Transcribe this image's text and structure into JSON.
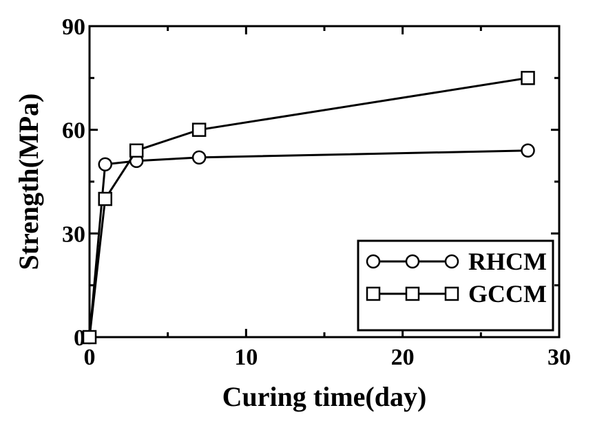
{
  "chart_data": {
    "type": "line",
    "xlabel": "Curing time(day)",
    "ylabel": "Strength(MPa)",
    "xlim": [
      0,
      30
    ],
    "ylim": [
      0,
      90
    ],
    "x_ticks": [
      "0",
      "10",
      "20",
      "30"
    ],
    "y_ticks": [
      "0",
      "30",
      "60",
      "90"
    ],
    "grid": false,
    "legend_position": "bottom-right",
    "series": [
      {
        "name": "RHCM",
        "marker": "circle",
        "color": "#000000",
        "x": [
          0,
          1,
          3,
          7,
          28
        ],
        "y": [
          0,
          50,
          51,
          52,
          54
        ]
      },
      {
        "name": "GCCM",
        "marker": "square",
        "color": "#000000",
        "x": [
          0,
          1,
          3,
          7,
          28
        ],
        "y": [
          0,
          40,
          54,
          60,
          75
        ]
      }
    ]
  }
}
